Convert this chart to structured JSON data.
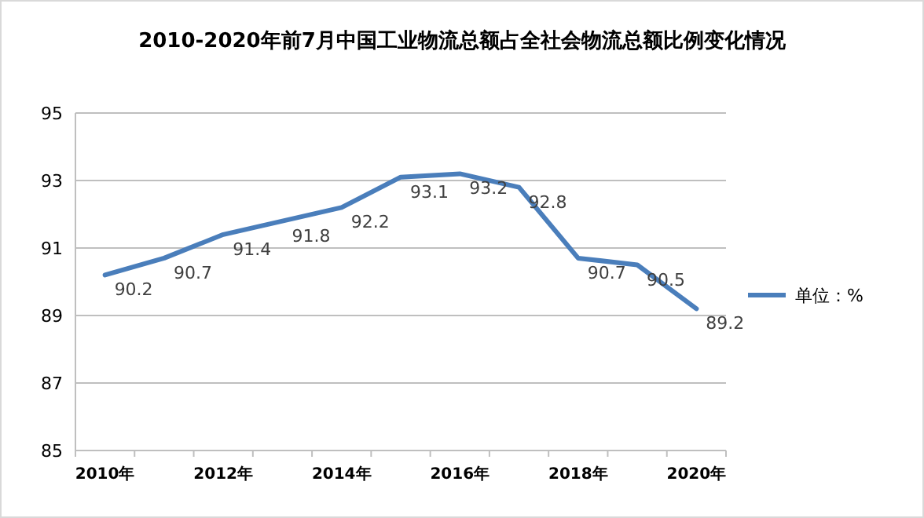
{
  "chart_data": {
    "type": "line",
    "title": "2010-2020年前7月中国工业物流总额占全社会物流总额比例变化情况",
    "categories": [
      "2010年",
      null,
      "2012年",
      null,
      "2014年",
      null,
      "2016年",
      null,
      "2018年",
      null,
      "2020年"
    ],
    "series": [
      {
        "name": "单位：%",
        "color": "#4a7ebb",
        "values": [
          90.2,
          90.7,
          91.4,
          91.8,
          92.2,
          93.1,
          93.2,
          92.8,
          90.7,
          90.5,
          89.2
        ]
      }
    ],
    "ylim": [
      85,
      95
    ],
    "yticks": [
      85,
      87,
      89,
      91,
      93,
      95
    ],
    "grid": "y",
    "legend": "right",
    "data_labels": true,
    "marker": "none",
    "line_style": "solid"
  }
}
